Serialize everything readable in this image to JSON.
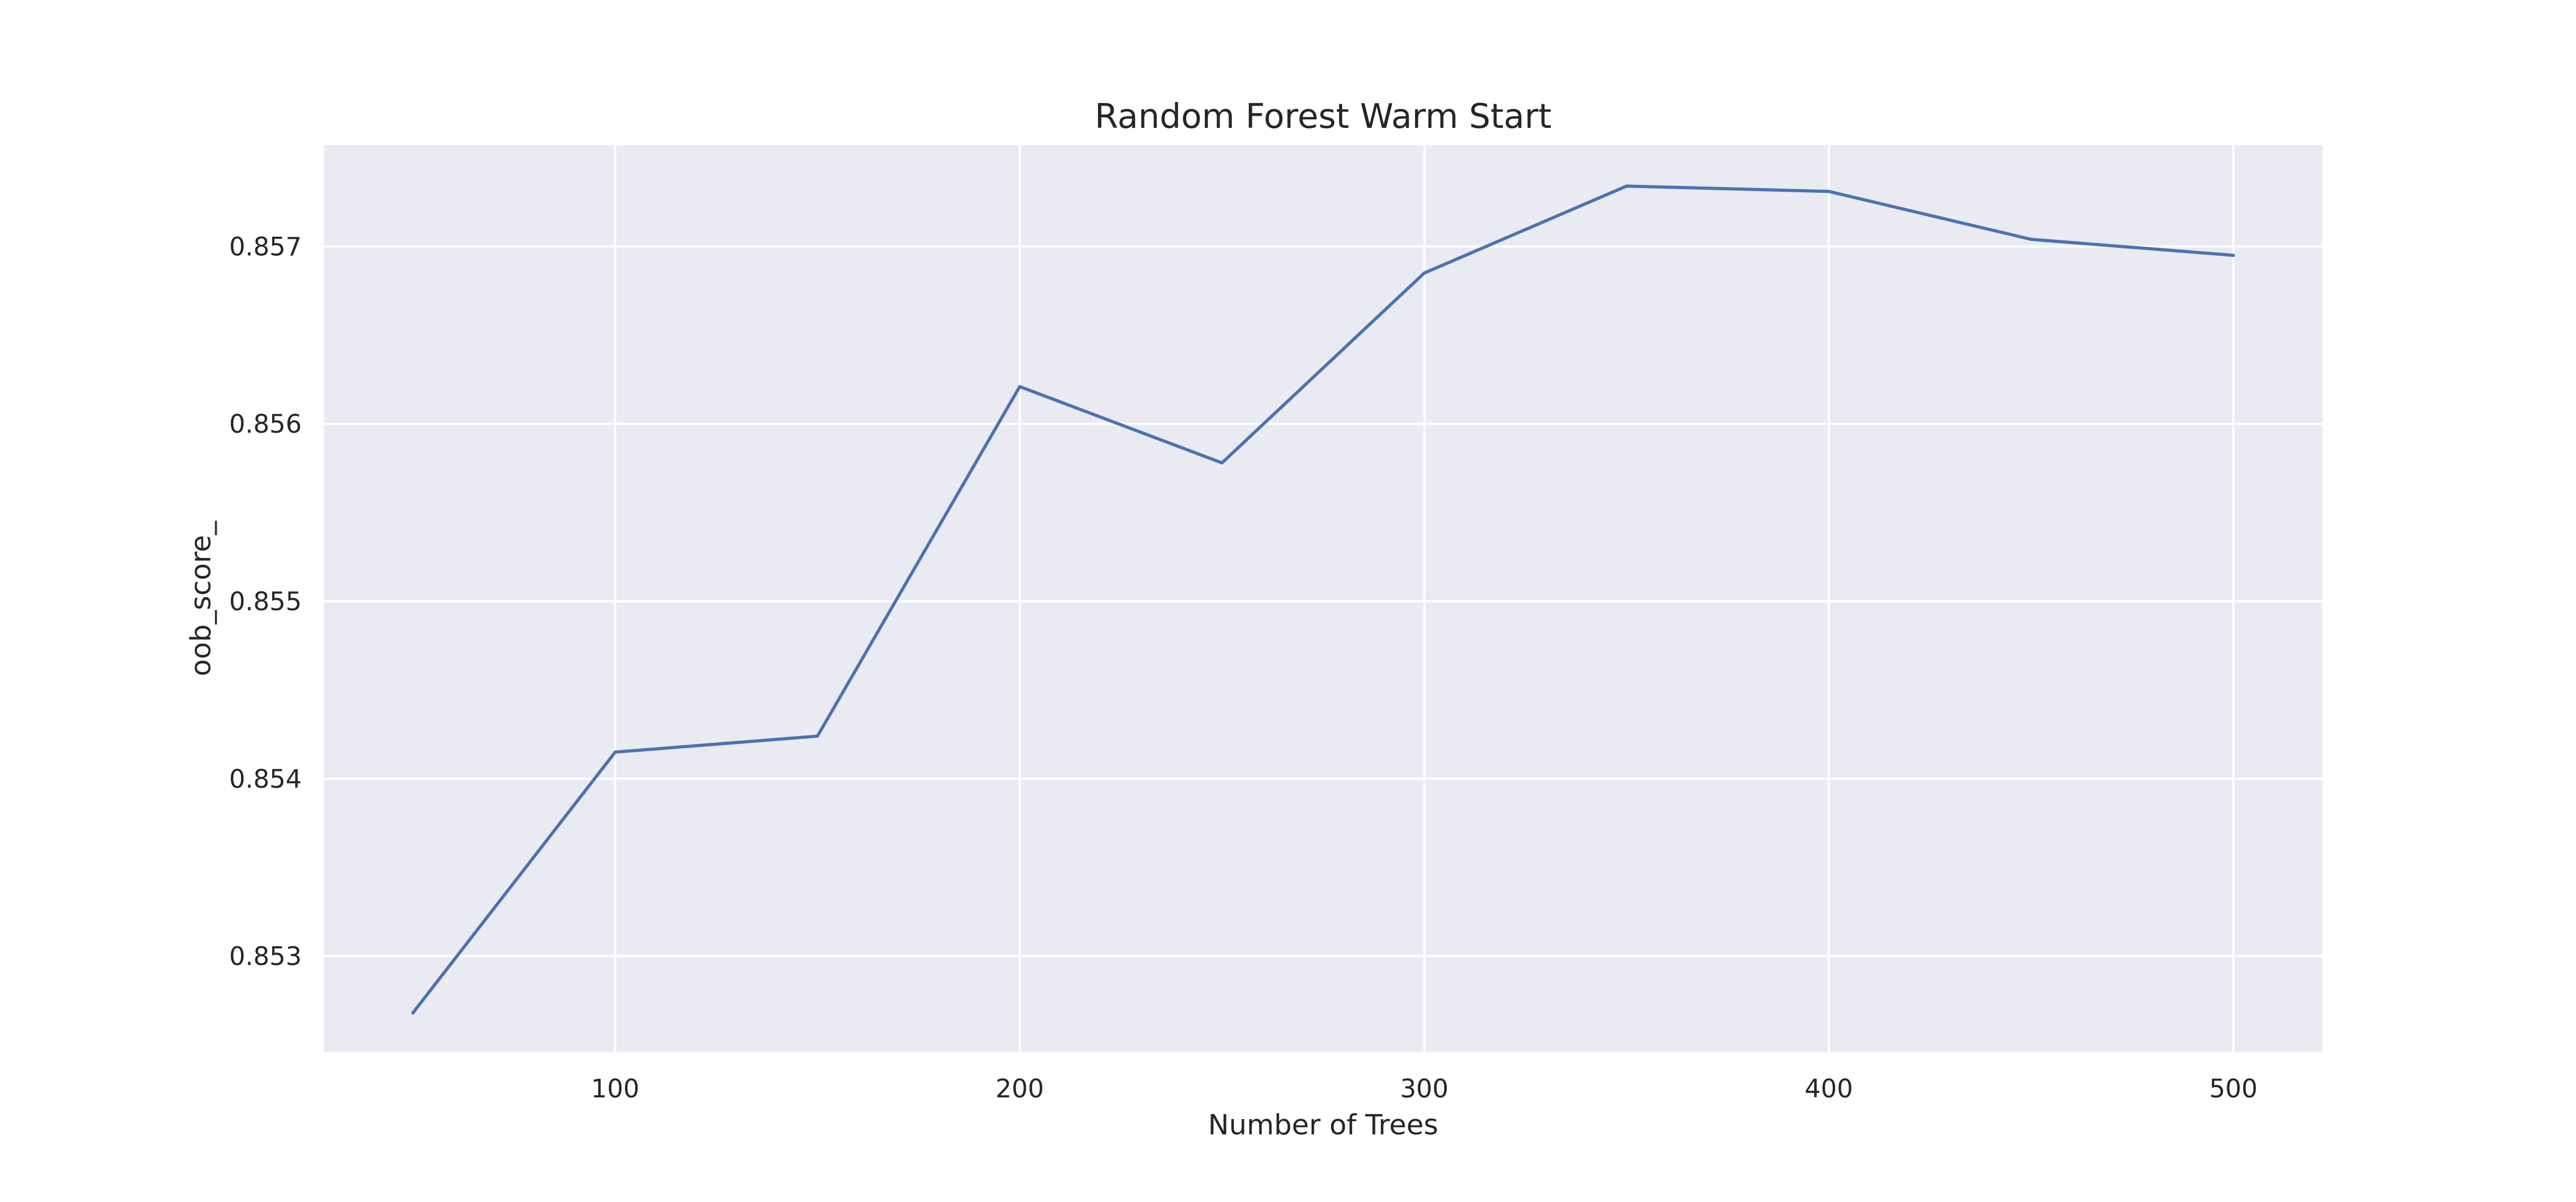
{
  "chart_data": {
    "type": "line",
    "title": "Random Forest Warm Start",
    "xlabel": "Number of Trees",
    "ylabel": "oob_score_",
    "xlim": [
      28,
      522
    ],
    "ylim": [
      0.85246,
      0.85757
    ],
    "x_ticks": [
      100,
      200,
      300,
      400,
      500
    ],
    "x_tick_labels": [
      "100",
      "200",
      "300",
      "400",
      "500"
    ],
    "y_ticks": [
      0.853,
      0.854,
      0.855,
      0.856,
      0.857
    ],
    "y_tick_labels": [
      "0.853",
      "0.854",
      "0.855",
      "0.856",
      "0.857"
    ],
    "grid": true,
    "colors": {
      "plot_background": "#eaeaf2",
      "grid": "#ffffff",
      "line": "#4c72b0",
      "text": "#262626"
    },
    "series": [
      {
        "x": [
          50,
          100,
          150,
          200,
          250,
          300,
          350,
          400,
          450,
          500
        ],
        "values": [
          0.85268,
          0.85415,
          0.85424,
          0.85621,
          0.85578,
          0.85685,
          0.85734,
          0.85731,
          0.85704,
          0.85695
        ]
      }
    ]
  }
}
